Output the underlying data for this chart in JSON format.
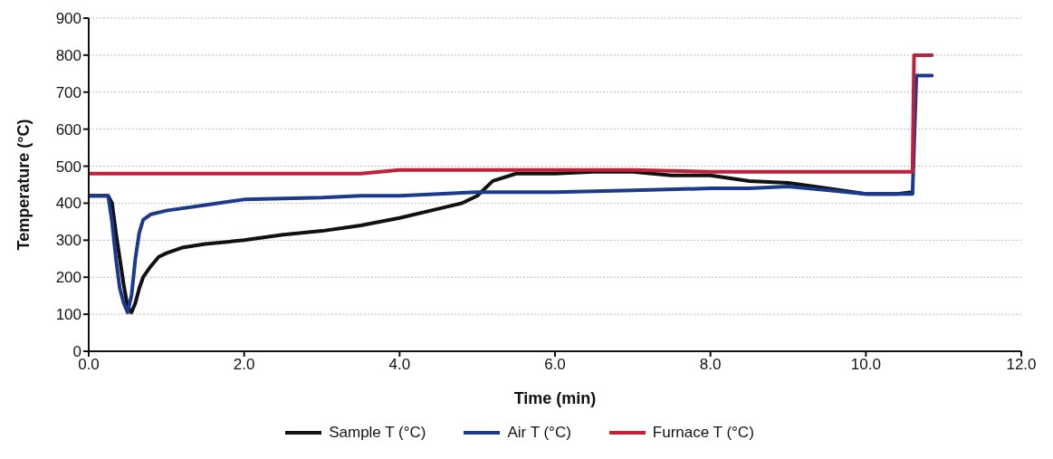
{
  "chart_data": {
    "type": "line",
    "xlabel": "Time (min)",
    "ylabel": "Temperature (°C)",
    "xlim": [
      0,
      12
    ],
    "xticks": [
      {
        "value": 0,
        "label": "0.0"
      },
      {
        "value": 2,
        "label": "2.0"
      },
      {
        "value": 4,
        "label": "4.0"
      },
      {
        "value": 6,
        "label": "6.0"
      },
      {
        "value": 8,
        "label": "8.0"
      },
      {
        "value": 10,
        "label": "10.0"
      },
      {
        "value": 12,
        "label": "12.0"
      }
    ],
    "ylim": [
      0,
      900
    ],
    "yticks": [
      0,
      100,
      200,
      300,
      400,
      500,
      600,
      700,
      800,
      900
    ],
    "grid": "y",
    "legend": "bottom",
    "marker": "none",
    "line_style": "solid",
    "series": [
      {
        "name": "Sample T (°C)",
        "color": "#111111",
        "x": [
          0,
          0.25,
          0.3,
          0.35,
          0.4,
          0.45,
          0.5,
          0.55,
          0.6,
          0.65,
          0.7,
          0.8,
          0.9,
          1.0,
          1.2,
          1.5,
          2.0,
          2.5,
          3.0,
          3.5,
          4.0,
          4.5,
          4.8,
          5.0,
          5.2,
          5.5,
          6.0,
          6.5,
          7.0,
          7.5,
          8.0,
          8.5,
          9.0,
          9.5,
          10.0,
          10.4,
          10.6
        ],
        "values": [
          420,
          420,
          400,
          320,
          250,
          180,
          120,
          105,
          130,
          170,
          200,
          230,
          255,
          265,
          280,
          290,
          300,
          315,
          325,
          340,
          360,
          385,
          400,
          420,
          460,
          480,
          480,
          485,
          485,
          475,
          475,
          460,
          455,
          440,
          425,
          425,
          430
        ]
      },
      {
        "name": "Air T (°C)",
        "color": "#1c3a8c",
        "x": [
          0,
          0.25,
          0.3,
          0.35,
          0.4,
          0.45,
          0.5,
          0.55,
          0.6,
          0.65,
          0.7,
          0.8,
          1.0,
          1.5,
          2.0,
          3.0,
          3.5,
          4.0,
          4.5,
          5.0,
          6.0,
          7.0,
          8.0,
          8.5,
          9.0,
          9.5,
          10.0,
          10.6,
          10.65,
          10.85
        ],
        "values": [
          420,
          420,
          350,
          250,
          170,
          130,
          105,
          150,
          250,
          320,
          355,
          370,
          380,
          395,
          410,
          415,
          420,
          420,
          425,
          430,
          430,
          435,
          440,
          440,
          445,
          435,
          425,
          425,
          745,
          745
        ]
      },
      {
        "name": "Furnace T (°C)",
        "color": "#c0203a",
        "x": [
          0,
          3.5,
          4.0,
          7.0,
          8.0,
          10.6,
          10.62,
          10.85
        ],
        "values": [
          480,
          480,
          490,
          490,
          485,
          485,
          800,
          800
        ]
      }
    ]
  }
}
